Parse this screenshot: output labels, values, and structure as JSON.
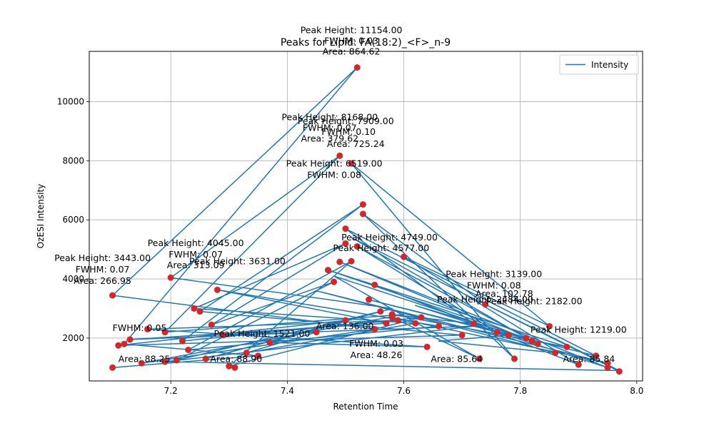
{
  "chart_data": {
    "type": "line",
    "title": "Peaks for Lipid: FA(18:2)_<F>_n-9",
    "xlabel": "Retention Time",
    "ylabel": "OzESI Intensity",
    "xlim": [
      7.06,
      8.01
    ],
    "ylim": [
      550,
      11700
    ],
    "x_ticks": [
      7.2,
      7.4,
      7.6,
      7.8,
      8.0
    ],
    "y_ticks": [
      2000,
      4000,
      6000,
      8000,
      10000
    ],
    "grid": true,
    "legend_position": "top-right",
    "series": [
      {
        "name": "Intensity",
        "color": "#1f77b4",
        "x": [
          7.1,
          7.35,
          7.12,
          7.52,
          7.1,
          7.55,
          7.15,
          7.6,
          7.19,
          7.49,
          7.2,
          7.58,
          7.26,
          7.5,
          7.11,
          7.7,
          7.25,
          7.53,
          7.22,
          7.63,
          7.3,
          7.51,
          7.23,
          7.66,
          7.28,
          7.57,
          7.13,
          7.45,
          7.33,
          7.62,
          7.24,
          7.5,
          7.27,
          7.48,
          7.21,
          7.56,
          7.37,
          7.64,
          7.16,
          7.59,
          7.29,
          7.72,
          7.19,
          7.97,
          7.74,
          7.53,
          7.79,
          7.51,
          7.85,
          7.6,
          7.9,
          7.55,
          7.76,
          7.52,
          7.83,
          7.49,
          7.95,
          7.62,
          7.81,
          7.47,
          7.88,
          7.58,
          7.72,
          7.5,
          7.93,
          7.54,
          7.78,
          7.66,
          7.86,
          7.45,
          7.95,
          7.58,
          7.73,
          7.48,
          7.82,
          7.51,
          7.97
        ],
        "y": [
          1000,
          1400,
          1800,
          11154,
          3443,
          2300,
          1150,
          2800,
          2200,
          8168,
          4045,
          3000,
          1300,
          2600,
          1750,
          2100,
          2900,
          6519,
          1900,
          2700,
          1050,
          4600,
          1600,
          2400,
          3631,
          2500,
          1950,
          2200,
          1500,
          2500,
          3000,
          5200,
          2450,
          3900,
          1250,
          2900,
          1850,
          1700,
          2300,
          2600,
          2100,
          2400,
          1200,
          900,
          3139,
          6200,
          1300,
          7909,
          2400,
          4749,
          1100,
          3800,
          2200,
          5100,
          1800,
          4577,
          1000,
          3100,
          2000,
          4300,
          1700,
          2800,
          2484,
          5700,
          1400,
          3300,
          2100,
          1900,
          1500,
          3600,
          1150,
          2700,
          1300,
          4100,
          1900,
          5400,
          870
        ]
      }
    ],
    "markers": {
      "color": "#d62728",
      "x": [
        7.1,
        7.1,
        7.11,
        7.12,
        7.13,
        7.15,
        7.16,
        7.19,
        7.19,
        7.2,
        7.21,
        7.22,
        7.23,
        7.24,
        7.25,
        7.26,
        7.27,
        7.28,
        7.29,
        7.3,
        7.31,
        7.33,
        7.35,
        7.37,
        7.45,
        7.47,
        7.48,
        7.49,
        7.49,
        7.5,
        7.5,
        7.5,
        7.51,
        7.51,
        7.52,
        7.52,
        7.53,
        7.53,
        7.54,
        7.55,
        7.55,
        7.56,
        7.57,
        7.58,
        7.58,
        7.59,
        7.6,
        7.62,
        7.63,
        7.64,
        7.66,
        7.7,
        7.72,
        7.73,
        7.74,
        7.76,
        7.78,
        7.79,
        7.81,
        7.82,
        7.83,
        7.85,
        7.86,
        7.88,
        7.9,
        7.93,
        7.95,
        7.95,
        7.97
      ],
      "y": [
        1000,
        3443,
        1750,
        1800,
        1950,
        1150,
        2300,
        2200,
        1200,
        4045,
        1250,
        1900,
        1600,
        3000,
        2900,
        1300,
        2450,
        3631,
        2100,
        1050,
        1000,
        1500,
        1400,
        1850,
        2200,
        4300,
        3900,
        8168,
        4577,
        5200,
        2600,
        5700,
        7909,
        4600,
        11154,
        5100,
        6519,
        6200,
        3300,
        2300,
        3800,
        2900,
        2500,
        2800,
        2700,
        2600,
        4749,
        2500,
        2700,
        1700,
        2400,
        2100,
        2484,
        1300,
        3139,
        2200,
        2100,
        1300,
        2000,
        1900,
        1800,
        2400,
        1500,
        1700,
        1100,
        1400,
        1000,
        1150,
        870
      ]
    },
    "annotations": [
      {
        "text": "Peak Height: 11154.00",
        "x": 7.51,
        "y": 11154,
        "dx": 0,
        "dy": -48
      },
      {
        "text": "FWHM: 0.03",
        "x": 7.51,
        "y": 11154,
        "dx": 0,
        "dy": -33
      },
      {
        "text": "Area: 864.62",
        "x": 7.51,
        "y": 11154,
        "dx": 0,
        "dy": -18
      },
      {
        "text": "Peak Height: 8168.00",
        "x": 7.49,
        "y": 8168,
        "dx": -14,
        "dy": -50
      },
      {
        "text": "FWHM: 0.07",
        "x": 7.49,
        "y": 8168,
        "dx": -14,
        "dy": -35
      },
      {
        "text": "Area: 379.62",
        "x": 7.49,
        "y": 8168,
        "dx": -14,
        "dy": -20
      },
      {
        "text": "Peak Height: 7909.00",
        "x": 7.52,
        "y": 7909,
        "dx": -16,
        "dy": -55
      },
      {
        "text": "FWHM: 0.10",
        "x": 7.52,
        "y": 7909,
        "dx": -12,
        "dy": -40
      },
      {
        "text": "Area: 725.24",
        "x": 7.52,
        "y": 7909,
        "dx": -2,
        "dy": -23
      },
      {
        "text": "Peak Height: 6519.00",
        "x": 7.51,
        "y": 6519,
        "dx": -24,
        "dy": -53
      },
      {
        "text": "FWHM: 0.08",
        "x": 7.51,
        "y": 6519,
        "dx": -24,
        "dy": -37
      },
      {
        "text": "Peak Height: 4045.00",
        "x": 7.26,
        "y": 4045,
        "dx": -14,
        "dy": -44
      },
      {
        "text": "FWHM: 0.07",
        "x": 7.26,
        "y": 4045,
        "dx": -14,
        "dy": -28
      },
      {
        "text": "Area: 313.09",
        "x": 7.26,
        "y": 4045,
        "dx": -14,
        "dy": -13
      },
      {
        "text": "Peak Height: 3631.00",
        "x": 7.28,
        "y": 3631,
        "dx": 28,
        "dy": -36
      },
      {
        "text": "Peak Height: 3443.00",
        "x": 7.1,
        "y": 3443,
        "dx": -14,
        "dy": -48
      },
      {
        "text": "FWHM: 0.07",
        "x": 7.1,
        "y": 3443,
        "dx": -14,
        "dy": -32
      },
      {
        "text": "Area: 266.95",
        "x": 7.1,
        "y": 3443,
        "dx": -14,
        "dy": -16
      },
      {
        "text": "Peak Height: 3139.00",
        "x": 7.74,
        "y": 3139,
        "dx": 12,
        "dy": -38
      },
      {
        "text": "FWHM: 0.08",
        "x": 7.74,
        "y": 3139,
        "dx": 12,
        "dy": -22
      },
      {
        "text": "Peak Height: 4749.00",
        "x": 7.6,
        "y": 4749,
        "dx": -20,
        "dy": -23
      },
      {
        "text": "Peak Height: 4577.00",
        "x": 7.49,
        "y": 4577,
        "dx": 58,
        "dy": -15
      },
      {
        "text": "Peak Height: 2484.00",
        "x": 7.72,
        "y": 2484,
        "dx": 16,
        "dy": -30
      },
      {
        "text": "Peak Height: 1521.00",
        "x": 7.31,
        "y": 1521,
        "dx": 38,
        "dy": -22
      },
      {
        "text": "FWHM: 0.03",
        "x": 7.57,
        "y": 1180,
        "dx": -14,
        "dy": -22
      },
      {
        "text": "Area: 48.26",
        "x": 7.57,
        "y": 1180,
        "dx": -14,
        "dy": -6
      },
      {
        "text": "Peak Height: 2182.00",
        "x": 7.83,
        "y": 2182,
        "dx": -5,
        "dy": -40
      },
      {
        "text": "Peak Height: 1219.00",
        "x": 7.9,
        "y": 1219,
        "dx": 0,
        "dy": -40
      },
      {
        "text": "Area: 85.64",
        "x": 7.74,
        "y": 1000,
        "dx": -40,
        "dy": -8
      },
      {
        "text": "Area: 85.84",
        "x": 7.94,
        "y": 1000,
        "dx": -18,
        "dy": -8
      },
      {
        "text": "Area: 88.25",
        "x": 7.13,
        "y": 1000,
        "dx": 20,
        "dy": -8
      },
      {
        "text": "Area: 88.90",
        "x": 7.3,
        "y": 1000,
        "dx": 10,
        "dy": -8
      },
      {
        "text": "Area: 102.78",
        "x": 7.78,
        "y": 1800,
        "dx": -6,
        "dy": -66
      },
      {
        "text": "FWHM: 0.05",
        "x": 7.22,
        "y": 1900,
        "dx": -60,
        "dy": -14
      },
      {
        "text": "Area: 136.00",
        "x": 7.45,
        "y": 2200,
        "dx": 40,
        "dy": -4
      }
    ]
  },
  "legend": {
    "label": "Intensity"
  }
}
